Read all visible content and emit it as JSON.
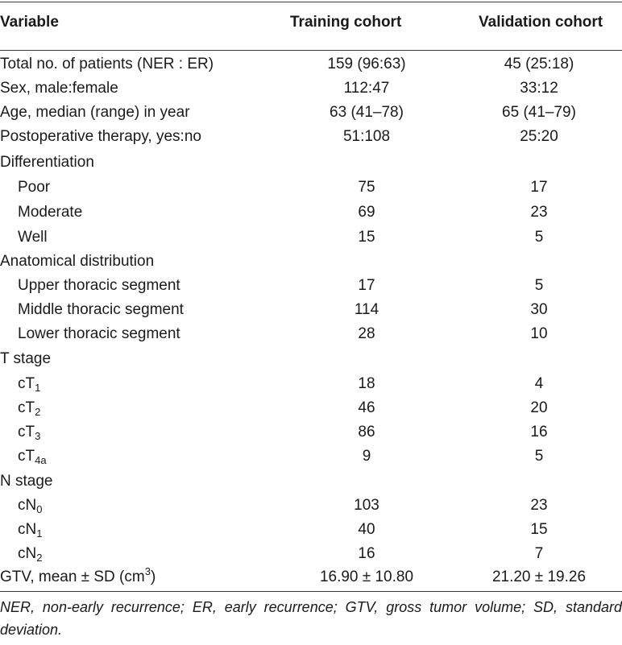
{
  "header": {
    "variable": "Variable",
    "training": "Training cohort",
    "validation": "Validation cohort"
  },
  "rows": [
    {
      "label": "Total no. of patients (NER : ER)",
      "training": "159 (96:63)",
      "validation": "45 (25:18)"
    },
    {
      "label": "Sex, male:female",
      "training": "112:47",
      "validation": "33:12"
    },
    {
      "label": "Age, median (range) in year",
      "training": "63 (41–78)",
      "validation": "65 (41–79)"
    },
    {
      "label": "Postoperative therapy, yes:no",
      "training": "51:108",
      "validation": "25:20"
    },
    {
      "label": "Differentiation",
      "training": "",
      "validation": ""
    },
    {
      "label": "Poor",
      "training": "75",
      "validation": "17"
    },
    {
      "label": "Moderate",
      "training": "69",
      "validation": "23"
    },
    {
      "label": "Well",
      "training": "15",
      "validation": "5"
    },
    {
      "label": "Anatomical distribution",
      "training": "",
      "validation": ""
    },
    {
      "label": "Upper thoracic segment",
      "training": "17",
      "validation": "5"
    },
    {
      "label": "Middle thoracic segment",
      "training": "114",
      "validation": "30"
    },
    {
      "label": "Lower thoracic segment",
      "training": "28",
      "validation": "10"
    },
    {
      "label": "T stage",
      "training": "",
      "validation": ""
    },
    {
      "label": "cT",
      "label_sub": "1",
      "training": "18",
      "validation": "4"
    },
    {
      "label": "cT",
      "label_sub": "2",
      "training": "46",
      "validation": "20"
    },
    {
      "label": "cT",
      "label_sub": "3",
      "training": "86",
      "validation": "16"
    },
    {
      "label": "cT",
      "label_sub": "4a",
      "training": "9",
      "validation": "5"
    },
    {
      "label": "N stage",
      "training": "",
      "validation": ""
    },
    {
      "label": "cN",
      "label_sub": "0",
      "training": "103",
      "validation": "23"
    },
    {
      "label": "cN",
      "label_sub": "1",
      "training": "40",
      "validation": "15"
    },
    {
      "label": "cN",
      "label_sub": "2",
      "training": "16",
      "validation": "7"
    },
    {
      "label": "GTV, mean ± SD (cm",
      "label_sup": "3",
      "label_after": ")",
      "training": "16.90 ± 10.80",
      "validation": "21.20 ± 19.26"
    }
  ],
  "footnote": "NER, non-early recurrence; ER, early recurrence; GTV, gross tumor volume; SD, standard deviation."
}
